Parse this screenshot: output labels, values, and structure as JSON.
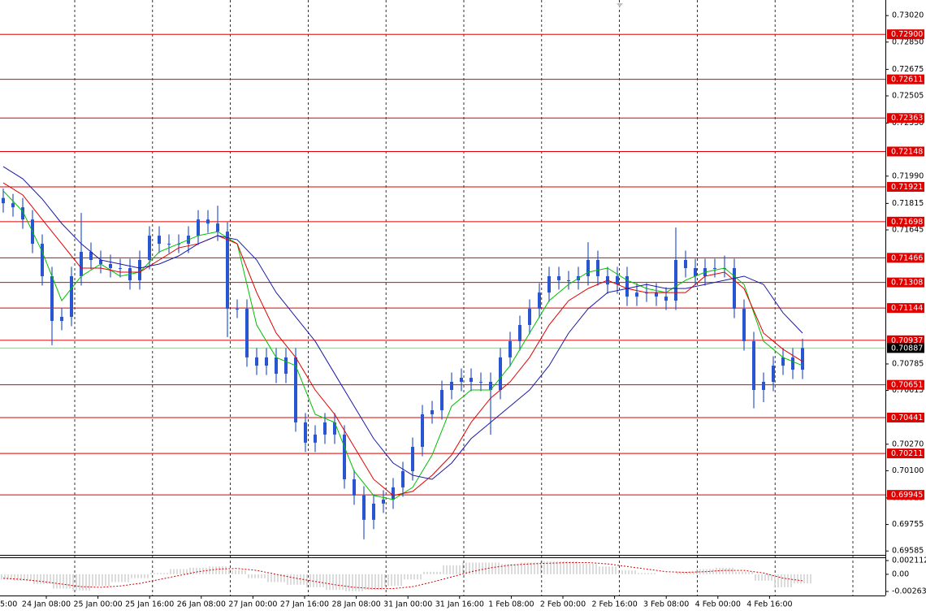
{
  "chart_data": {
    "type": "candlestick",
    "color": "#2a55d0",
    "ylim": [
      0.6956,
      0.7312
    ],
    "yticks": [
      {
        "value": 0.7302,
        "label": "0.73020"
      },
      {
        "value": 0.7285,
        "label": "0.72850"
      },
      0.72675,
      0.72505,
      {
        "value": 0.7233,
        "label": "0.72330"
      },
      {
        "value": 0.7199,
        "label": "0.71990"
      },
      0.71815,
      0.71645,
      0.70785,
      0.70615,
      {
        "value": 0.7027,
        "label": "0.70270"
      },
      {
        "value": 0.701,
        "label": "0.70100"
      },
      0.69925,
      0.69755,
      0.69585
    ],
    "x_labels": [
      "5:00",
      "24 Jan 08:00",
      "25 Jan 00:00",
      "25 Jan 16:00",
      "26 Jan 08:00",
      "27 Jan 00:00",
      "27 Jan 16:00",
      "28 Jan 08:00",
      "31 Jan 00:00",
      "31 Jan 16:00",
      "1 Feb 08:00",
      "2 Feb 00:00",
      "2 Feb 16:00",
      "3 Feb 08:00",
      "4 Feb 00:00",
      "4 Feb 16:00"
    ],
    "open": [
      0.7185,
      0.71816,
      0.7179,
      0.71712,
      0.71556,
      0.71348,
      0.71061,
      0.71087,
      0.71348,
      0.71504,
      0.71452,
      0.71426,
      0.714,
      0.714,
      0.71322,
      0.71452,
      0.71608,
      0.71556,
      0.71556,
      0.71556,
      0.71608,
      0.71712,
      0.71686,
      0.71634,
      0.71139,
      0.71139,
      0.70827,
      0.70774,
      0.70827,
      0.70722,
      0.70827,
      0.7041,
      0.7028,
      0.70332,
      0.7041,
      0.70332,
      0.70045,
      0.69941,
      0.69785,
      0.69889,
      0.69915,
      0.69993,
      0.70097,
      0.70253,
      0.70462,
      0.70488,
      0.70618,
      0.7067,
      0.70696,
      0.7067,
      0.7067,
      0.70618,
      0.70827,
      0.70931,
      0.71035,
      0.71139,
      0.71243,
      0.71348,
      0.71322,
      0.71322,
      0.71348,
      0.71452,
      0.71348,
      0.71295,
      0.71348,
      0.71217,
      0.71243,
      0.71243,
      0.71217,
      0.71191,
      0.71452,
      0.714,
      0.71348,
      0.714,
      0.714,
      0.714,
      0.71139,
      0.70931,
      0.70618,
      0.7067,
      0.70774,
      0.70827,
      0.70748
    ],
    "high": [
      0.7191,
      0.71876,
      0.7185,
      0.71772,
      0.71616,
      0.71408,
      0.71147,
      0.71408,
      0.71754,
      0.71564,
      0.71512,
      0.71486,
      0.7146,
      0.7146,
      0.71512,
      0.71668,
      0.71668,
      0.71616,
      0.71616,
      0.71668,
      0.71772,
      0.71772,
      0.718,
      0.71694,
      0.71199,
      0.71199,
      0.70887,
      0.70887,
      0.70887,
      0.70887,
      0.70887,
      0.7047,
      0.70392,
      0.7047,
      0.7047,
      0.70392,
      0.70105,
      0.70001,
      0.69949,
      0.69975,
      0.70053,
      0.70157,
      0.70313,
      0.70522,
      0.70548,
      0.70678,
      0.7073,
      0.70756,
      0.70756,
      0.7073,
      0.7073,
      0.70887,
      0.70991,
      0.71095,
      0.71199,
      0.71303,
      0.71408,
      0.71408,
      0.71382,
      0.71408,
      0.71566,
      0.71512,
      0.71408,
      0.71408,
      0.71408,
      0.71303,
      0.71303,
      0.71303,
      0.71277,
      0.7166,
      0.71512,
      0.7146,
      0.7146,
      0.7146,
      0.7148,
      0.7146,
      0.71199,
      0.70991,
      0.7073,
      0.70834,
      0.70887,
      0.70887,
      0.70947
    ],
    "low": [
      0.71756,
      0.7173,
      0.71652,
      0.71496,
      0.71288,
      0.70905,
      0.71001,
      0.71027,
      0.71288,
      0.71392,
      0.71366,
      0.7134,
      0.7134,
      0.71262,
      0.71262,
      0.71392,
      0.71496,
      0.71496,
      0.71496,
      0.71496,
      0.71548,
      0.71626,
      0.71574,
      0.70957,
      0.71079,
      0.70767,
      0.70714,
      0.70714,
      0.70662,
      0.70662,
      0.7035,
      0.7022,
      0.7022,
      0.70272,
      0.70272,
      0.69985,
      0.69881,
      0.6966,
      0.69725,
      0.69829,
      0.69855,
      0.69933,
      0.70037,
      0.70193,
      0.70402,
      0.70428,
      0.70558,
      0.7061,
      0.7061,
      0.7061,
      0.70331,
      0.70558,
      0.70767,
      0.70871,
      0.70975,
      0.71079,
      0.71183,
      0.71262,
      0.71262,
      0.71262,
      0.71288,
      0.71288,
      0.71235,
      0.71235,
      0.71157,
      0.71157,
      0.71183,
      0.71157,
      0.71131,
      0.71131,
      0.7134,
      0.71288,
      0.71288,
      0.7134,
      0.7134,
      0.71079,
      0.70871,
      0.705,
      0.7054,
      0.7061,
      0.70714,
      0.70688,
      0.70688
    ],
    "close": [
      0.71816,
      0.7179,
      0.71712,
      0.71556,
      0.71348,
      0.71061,
      0.71087,
      0.71348,
      0.71504,
      0.71452,
      0.71426,
      0.714,
      0.714,
      0.71322,
      0.71452,
      0.71608,
      0.71556,
      0.71556,
      0.71556,
      0.71608,
      0.71712,
      0.71686,
      0.71634,
      0.71139,
      0.71139,
      0.70827,
      0.70774,
      0.70827,
      0.70722,
      0.70827,
      0.7041,
      0.7028,
      0.70332,
      0.7041,
      0.70332,
      0.70045,
      0.69941,
      0.69785,
      0.69889,
      0.69915,
      0.69993,
      0.70097,
      0.70253,
      0.70462,
      0.70488,
      0.70618,
      0.7067,
      0.70696,
      0.7067,
      0.7067,
      0.70618,
      0.70827,
      0.70931,
      0.71035,
      0.71139,
      0.71243,
      0.71348,
      0.71322,
      0.71322,
      0.71348,
      0.71452,
      0.71348,
      0.71295,
      0.71348,
      0.71217,
      0.71243,
      0.71243,
      0.71217,
      0.71191,
      0.71452,
      0.714,
      0.71348,
      0.714,
      0.714,
      0.714,
      0.71139,
      0.70931,
      0.70618,
      0.7067,
      0.70774,
      0.70827,
      0.70748,
      0.70887
    ],
    "moving_averages": [
      {
        "color": "#00c000",
        "values": [
          0.71895,
          0.71764,
          0.71504,
          0.71191,
          0.71348,
          0.71426,
          0.71348,
          0.71374,
          0.71504,
          0.71556,
          0.71608,
          0.71634,
          0.71556,
          0.71035,
          0.70827,
          0.70774,
          0.70462,
          0.7041,
          0.70097,
          0.69941,
          0.69915,
          0.69993,
          0.70201,
          0.70514,
          0.70618,
          0.70618,
          0.70774,
          0.70983,
          0.71191,
          0.71295,
          0.71374,
          0.714,
          0.71322,
          0.71269,
          0.71243,
          0.71322,
          0.71374,
          0.714,
          0.71295,
          0.70931,
          0.70827,
          0.70774
        ]
      },
      {
        "color": "#e00000",
        "values": [
          0.71947,
          0.71869,
          0.71712,
          0.71556,
          0.714,
          0.714,
          0.71374,
          0.71374,
          0.71452,
          0.7153,
          0.71556,
          0.71608,
          0.71556,
          0.71243,
          0.70983,
          0.70827,
          0.70618,
          0.70462,
          0.70253,
          0.70045,
          0.69941,
          0.69967,
          0.70071,
          0.70201,
          0.7041,
          0.70566,
          0.7067,
          0.70827,
          0.71035,
          0.71191,
          0.71269,
          0.71322,
          0.71269,
          0.71243,
          0.71243,
          0.71243,
          0.71348,
          0.71374,
          0.71269,
          0.70983,
          0.70879,
          0.70801
        ]
      },
      {
        "color": "#1a1aa6",
        "values": [
          0.72051,
          0.71973,
          0.71843,
          0.71686,
          0.71556,
          0.71452,
          0.71426,
          0.714,
          0.71426,
          0.71478,
          0.71556,
          0.71608,
          0.71582,
          0.71452,
          0.71243,
          0.71087,
          0.70931,
          0.70722,
          0.70514,
          0.70306,
          0.70149,
          0.70071,
          0.70045,
          0.70149,
          0.70306,
          0.7041,
          0.70514,
          0.70618,
          0.70774,
          0.70983,
          0.71139,
          0.71243,
          0.71269,
          0.71295,
          0.71269,
          0.71269,
          0.71295,
          0.71322,
          0.71348,
          0.71295,
          0.71113,
          0.70983
        ]
      }
    ],
    "levels": {
      "color": "#e00000",
      "values": [
        {
          "value": 0.729,
          "label": "0.72900"
        },
        0.72611,
        0.72363,
        0.72148,
        0.71921,
        0.71698,
        0.71466,
        0.71308,
        0.71144,
        0.70937,
        0.70651,
        0.70441,
        0.70211,
        0.69945
      ]
    },
    "current_price": 0.70887,
    "oscillator": {
      "ylim": [
        -0.00326,
        0.00261
      ],
      "yticks": [
        0.002112,
        {
          "value": 0,
          "label": "0.00"
        },
        -0.002635
      ],
      "color": "#b8b8b8",
      "values": [
        -0.0008,
        -0.001,
        -0.0015,
        -0.0022,
        -0.0025,
        -0.0018,
        -0.0012,
        -0.0006,
        0.0002,
        0.0008,
        0.001,
        0.0012,
        0.0006,
        -0.0006,
        -0.0012,
        -0.0016,
        -0.002,
        -0.0024,
        -0.0026,
        -0.0024,
        -0.0018,
        -0.0008,
        0.0004,
        0.0014,
        0.0018,
        0.0018,
        0.0016,
        0.0018,
        0.002,
        0.002,
        0.0016,
        0.0012,
        0.0006,
        0.0002,
        0,
        0.0004,
        0.0008,
        0.001,
        0.0004,
        -0.001,
        -0.002,
        -0.0014
      ],
      "signal": {
        "color": "#d00000",
        "values": [
          -0.0006,
          -0.0008,
          -0.0011,
          -0.0015,
          -0.0019,
          -0.002,
          -0.0018,
          -0.0014,
          -0.0008,
          -0.0002,
          0.0004,
          0.0008,
          0.0009,
          0.0006,
          0,
          -0.0006,
          -0.0011,
          -0.0016,
          -0.002,
          -0.0022,
          -0.0022,
          -0.0019,
          -0.0012,
          -0.0004,
          0.0004,
          0.001,
          0.0014,
          0.0016,
          0.0017,
          0.0018,
          0.0018,
          0.0016,
          0.0012,
          0.0008,
          0.0004,
          0.0003,
          0.0004,
          0.0006,
          0.0006,
          0.0002,
          -0.0006,
          -0.001
        ]
      }
    }
  }
}
